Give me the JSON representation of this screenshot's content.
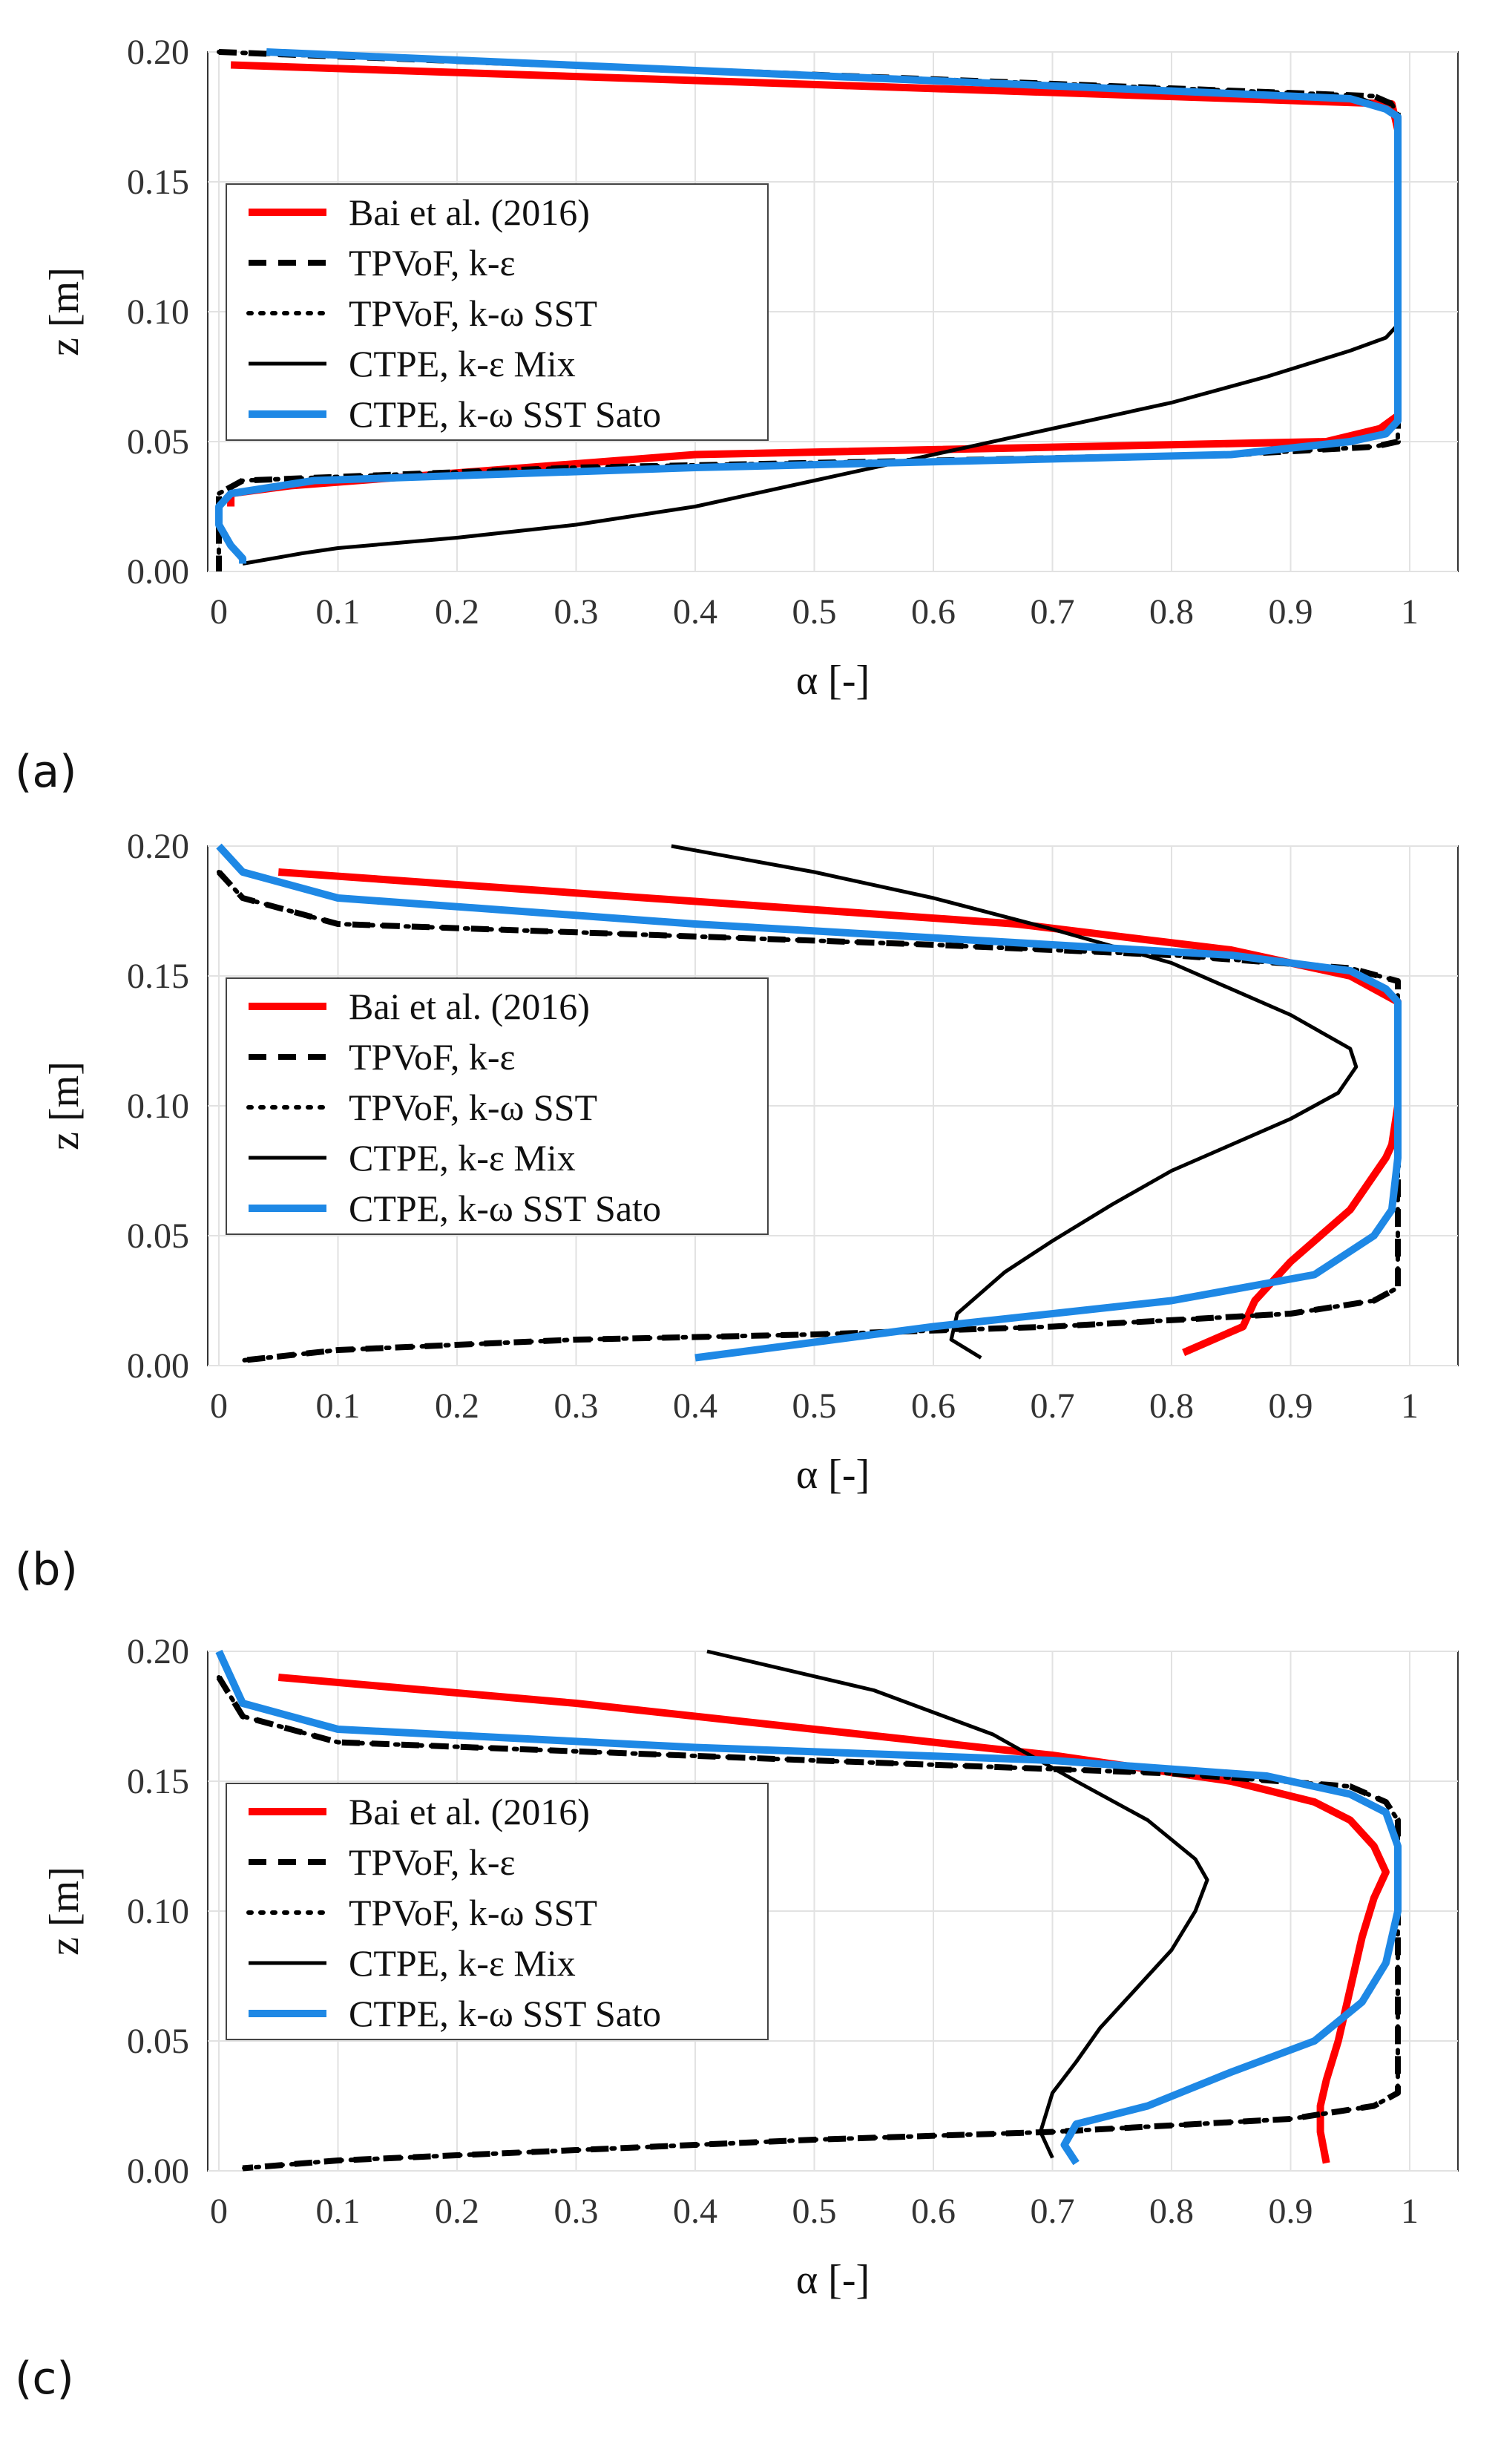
{
  "chart_data": [
    {
      "panel_label": "(a)",
      "type": "line",
      "xlabel": "α [-]",
      "ylabel": "z [m]",
      "xlim": [
        0,
        1
      ],
      "ylim": [
        0,
        0.2
      ],
      "xticks": [
        "0",
        "0.1",
        "0.2",
        "0.3",
        "0.4",
        "0.5",
        "0.6",
        "0.7",
        "0.8",
        "0.9",
        "1"
      ],
      "yticks": [
        "0.00",
        "0.05",
        "0.10",
        "0.15",
        "0.20"
      ],
      "grid": true,
      "legend_position": "left",
      "series": [
        {
          "name": "Bai et al. (2016)",
          "color": "#ff0000",
          "style": "solid-thick",
          "x": [
            0.01,
            0.01,
            0.985,
            0.99,
            0.99,
            0.975,
            0.93,
            0.4,
            0.06,
            0.01,
            0.01
          ],
          "y": [
            0.195,
            0.195,
            0.18,
            0.17,
            0.06,
            0.055,
            0.05,
            0.045,
            0.033,
            0.03,
            0.025
          ]
        },
        {
          "name": "TPVoF, k-ε",
          "color": "#000000",
          "style": "dashed",
          "x": [
            0.0,
            0.97,
            0.985,
            0.99,
            0.99,
            0.99,
            0.99,
            0.97,
            0.85,
            0.3,
            0.02,
            0.0,
            0.0,
            0.0
          ],
          "y": [
            0.2,
            0.183,
            0.18,
            0.176,
            0.1,
            0.06,
            0.05,
            0.048,
            0.045,
            0.04,
            0.035,
            0.03,
            0.01,
            0.0
          ]
        },
        {
          "name": "TPVoF, k-ω SST",
          "color": "#000000",
          "style": "dotted",
          "x": [
            0.0,
            0.97,
            0.985,
            0.99,
            0.99,
            0.99,
            0.99,
            0.97,
            0.85,
            0.3,
            0.02,
            0.0,
            0.0,
            0.0
          ],
          "y": [
            0.2,
            0.183,
            0.18,
            0.176,
            0.1,
            0.06,
            0.05,
            0.048,
            0.045,
            0.04,
            0.035,
            0.03,
            0.01,
            0.0
          ]
        },
        {
          "name": "CTPE,  k-ε Mix",
          "color": "#000000",
          "style": "solid",
          "x": [
            0.04,
            0.96,
            0.99,
            0.99,
            0.99,
            0.98,
            0.95,
            0.88,
            0.8,
            0.7,
            0.6,
            0.5,
            0.4,
            0.3,
            0.2,
            0.1,
            0.07,
            0.02
          ],
          "y": [
            0.2,
            0.182,
            0.176,
            0.1,
            0.095,
            0.09,
            0.085,
            0.075,
            0.065,
            0.055,
            0.045,
            0.035,
            0.025,
            0.018,
            0.013,
            0.009,
            0.007,
            0.003
          ]
        },
        {
          "name": "CTPE,  k-ω SST Sato",
          "color": "#1e88e5",
          "style": "solid-thick",
          "x": [
            0.04,
            0.95,
            0.98,
            0.99,
            0.99,
            0.99,
            0.98,
            0.95,
            0.85,
            0.4,
            0.08,
            0.01,
            0.0,
            0.0,
            0.01,
            0.02,
            0.02
          ],
          "y": [
            0.2,
            0.182,
            0.178,
            0.175,
            0.1,
            0.058,
            0.053,
            0.05,
            0.045,
            0.04,
            0.035,
            0.03,
            0.025,
            0.018,
            0.01,
            0.005,
            0.003
          ]
        }
      ]
    },
    {
      "panel_label": "(b)",
      "type": "line",
      "xlabel": "α [-]",
      "ylabel": "z [m]",
      "xlim": [
        0,
        1
      ],
      "ylim": [
        0,
        0.2
      ],
      "xticks": [
        "0",
        "0.1",
        "0.2",
        "0.3",
        "0.4",
        "0.5",
        "0.6",
        "0.7",
        "0.8",
        "0.9",
        "1"
      ],
      "yticks": [
        "0.00",
        "0.05",
        "0.10",
        "0.15",
        "0.20"
      ],
      "grid": true,
      "legend_position": "left",
      "series": [
        {
          "name": "Bai et al. (2016)",
          "color": "#ff0000",
          "style": "solid-thick",
          "x": [
            0.05,
            0.67,
            0.85,
            0.95,
            0.99,
            0.99,
            0.985,
            0.98,
            0.95,
            0.9,
            0.88,
            0.87,
            0.86,
            0.81
          ],
          "y": [
            0.19,
            0.17,
            0.16,
            0.15,
            0.14,
            0.1,
            0.085,
            0.08,
            0.06,
            0.04,
            0.03,
            0.025,
            0.015,
            0.005
          ]
        },
        {
          "name": "TPVoF, k-ε",
          "color": "#000000",
          "style": "dashed",
          "x": [
            0.0,
            0.02,
            0.1,
            0.6,
            0.8,
            0.95,
            0.99,
            0.99,
            0.99,
            0.97,
            0.9,
            0.7,
            0.5,
            0.3,
            0.1,
            0.02
          ],
          "y": [
            0.19,
            0.18,
            0.17,
            0.162,
            0.158,
            0.153,
            0.148,
            0.1,
            0.03,
            0.025,
            0.02,
            0.015,
            0.012,
            0.01,
            0.006,
            0.002
          ]
        },
        {
          "name": "TPVoF, k-ω SST",
          "color": "#000000",
          "style": "dotted",
          "x": [
            0.0,
            0.02,
            0.1,
            0.6,
            0.8,
            0.95,
            0.99,
            0.99,
            0.99,
            0.97,
            0.9,
            0.7,
            0.5,
            0.3,
            0.1,
            0.02
          ],
          "y": [
            0.19,
            0.18,
            0.17,
            0.162,
            0.158,
            0.153,
            0.148,
            0.1,
            0.03,
            0.025,
            0.02,
            0.015,
            0.012,
            0.01,
            0.006,
            0.002
          ]
        },
        {
          "name": "CTPE,  k-ε Mix",
          "color": "#000000",
          "style": "solid",
          "x": [
            0.38,
            0.5,
            0.6,
            0.7,
            0.8,
            0.9,
            0.95,
            0.955,
            0.94,
            0.9,
            0.85,
            0.8,
            0.75,
            0.7,
            0.66,
            0.62,
            0.615,
            0.64
          ],
          "y": [
            0.2,
            0.19,
            0.18,
            0.168,
            0.155,
            0.135,
            0.122,
            0.115,
            0.105,
            0.095,
            0.085,
            0.075,
            0.062,
            0.048,
            0.036,
            0.02,
            0.01,
            0.003
          ]
        },
        {
          "name": "CTPE,  k-ω SST Sato",
          "color": "#1e88e5",
          "style": "solid-thick",
          "x": [
            0.0,
            0.02,
            0.1,
            0.4,
            0.7,
            0.85,
            0.95,
            0.98,
            0.99,
            0.99,
            0.985,
            0.97,
            0.92,
            0.8,
            0.6,
            0.4
          ],
          "y": [
            0.2,
            0.19,
            0.18,
            0.17,
            0.162,
            0.158,
            0.152,
            0.145,
            0.14,
            0.08,
            0.06,
            0.05,
            0.035,
            0.025,
            0.015,
            0.003
          ]
        }
      ]
    },
    {
      "panel_label": "(c)",
      "type": "line",
      "xlabel": "α [-]",
      "ylabel": "z [m]",
      "xlim": [
        0,
        1
      ],
      "ylim": [
        0,
        0.2
      ],
      "xticks": [
        "0",
        "0.1",
        "0.2",
        "0.3",
        "0.4",
        "0.5",
        "0.6",
        "0.7",
        "0.8",
        "0.9",
        "1"
      ],
      "yticks": [
        "0.00",
        "0.05",
        "0.10",
        "0.15",
        "0.20"
      ],
      "grid": true,
      "legend_position": "left",
      "series": [
        {
          "name": "Bai et al. (2016)",
          "color": "#ff0000",
          "style": "solid-thick",
          "x": [
            0.05,
            0.3,
            0.5,
            0.7,
            0.85,
            0.92,
            0.95,
            0.97,
            0.98,
            0.97,
            0.96,
            0.95,
            0.94,
            0.93,
            0.925,
            0.925,
            0.93
          ],
          "y": [
            0.19,
            0.18,
            0.17,
            0.16,
            0.15,
            0.142,
            0.135,
            0.125,
            0.115,
            0.105,
            0.09,
            0.07,
            0.05,
            0.035,
            0.025,
            0.015,
            0.003
          ]
        },
        {
          "name": "TPVoF, k-ε",
          "color": "#000000",
          "style": "dashed",
          "x": [
            0.0,
            0.02,
            0.1,
            0.5,
            0.8,
            0.95,
            0.98,
            0.99,
            0.99,
            0.99,
            0.97,
            0.9,
            0.7,
            0.5,
            0.3,
            0.1,
            0.02
          ],
          "y": [
            0.19,
            0.175,
            0.165,
            0.158,
            0.153,
            0.148,
            0.142,
            0.135,
            0.1,
            0.03,
            0.025,
            0.02,
            0.015,
            0.012,
            0.008,
            0.004,
            0.001
          ]
        },
        {
          "name": "TPVoF, k-ω SST",
          "color": "#000000",
          "style": "dotted",
          "x": [
            0.0,
            0.02,
            0.1,
            0.5,
            0.8,
            0.95,
            0.98,
            0.99,
            0.99,
            0.99,
            0.97,
            0.9,
            0.7,
            0.5,
            0.3,
            0.1,
            0.02
          ],
          "y": [
            0.19,
            0.175,
            0.165,
            0.158,
            0.153,
            0.148,
            0.142,
            0.135,
            0.1,
            0.03,
            0.025,
            0.02,
            0.015,
            0.012,
            0.008,
            0.004,
            0.001
          ]
        },
        {
          "name": "CTPE,  k-ε Mix",
          "color": "#000000",
          "style": "solid",
          "x": [
            0.41,
            0.55,
            0.65,
            0.72,
            0.78,
            0.82,
            0.83,
            0.82,
            0.8,
            0.77,
            0.74,
            0.72,
            0.7,
            0.69,
            0.7
          ],
          "y": [
            0.2,
            0.185,
            0.168,
            0.15,
            0.135,
            0.12,
            0.112,
            0.1,
            0.085,
            0.07,
            0.055,
            0.042,
            0.03,
            0.015,
            0.005
          ]
        },
        {
          "name": "CTPE,  k-ω SST Sato",
          "color": "#1e88e5",
          "style": "solid-thick",
          "x": [
            0.0,
            0.02,
            0.1,
            0.4,
            0.7,
            0.88,
            0.95,
            0.98,
            0.99,
            0.99,
            0.98,
            0.96,
            0.92,
            0.85,
            0.78,
            0.72,
            0.71,
            0.72
          ],
          "y": [
            0.2,
            0.18,
            0.17,
            0.163,
            0.158,
            0.152,
            0.145,
            0.138,
            0.125,
            0.1,
            0.08,
            0.065,
            0.05,
            0.038,
            0.025,
            0.018,
            0.01,
            0.003
          ]
        }
      ]
    }
  ]
}
